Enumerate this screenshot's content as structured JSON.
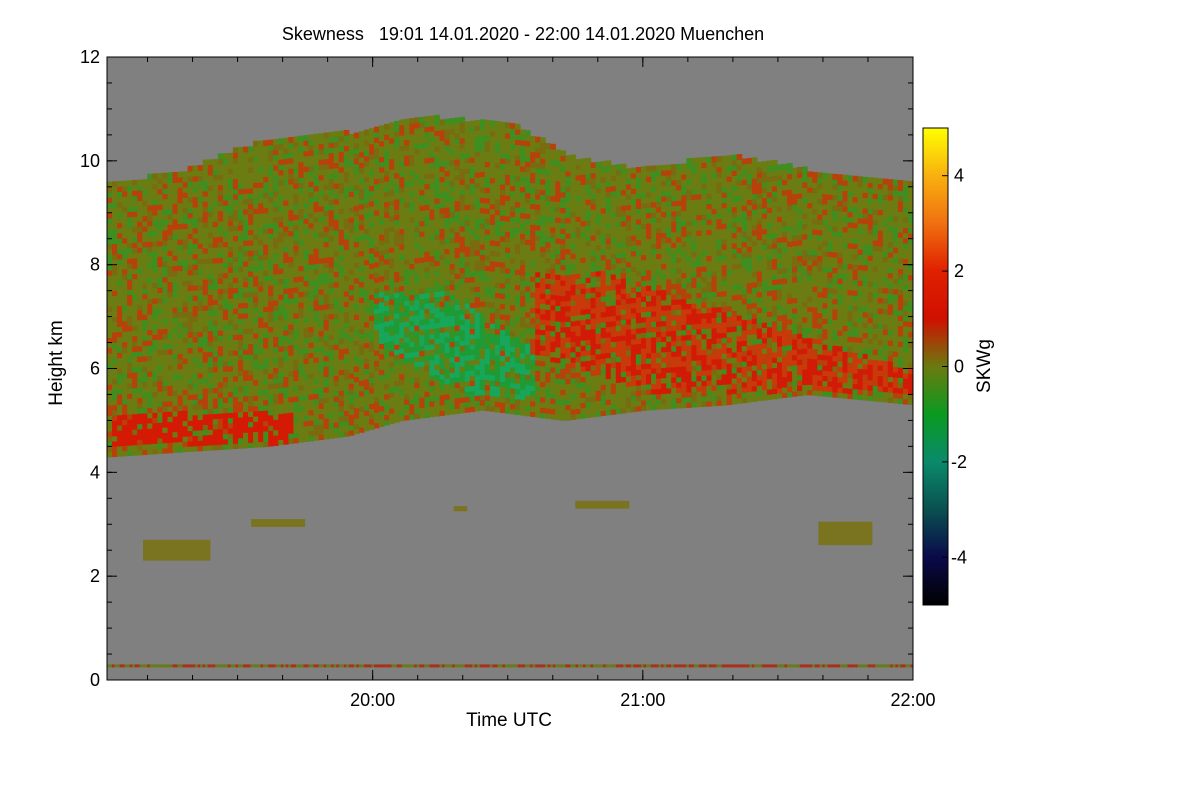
{
  "chart_data": {
    "type": "heatmap",
    "title": "Skewness   19:01 14.01.2020 - 22:00 14.01.2020 Muenchen",
    "xlabel": "Time UTC",
    "ylabel": "Height km",
    "colorbar_label": "SKWg",
    "x_start": "19:01",
    "x_end": "22:00",
    "xlim_hours": [
      19.0167,
      22.0
    ],
    "ylim": [
      0,
      12
    ],
    "x_ticks": [
      {
        "value": 20,
        "label": "20:00"
      },
      {
        "value": 21,
        "label": "21:00"
      },
      {
        "value": 22,
        "label": "22:00"
      }
    ],
    "x_minor_step_min": 10,
    "y_ticks": [
      {
        "value": 0,
        "label": "0"
      },
      {
        "value": 2,
        "label": "2"
      },
      {
        "value": 4,
        "label": "4"
      },
      {
        "value": 6,
        "label": "6"
      },
      {
        "value": 8,
        "label": "8"
      },
      {
        "value": 10,
        "label": "10"
      },
      {
        "value": 12,
        "label": "12"
      }
    ],
    "y_minor_step": 0.5,
    "colorbar": {
      "range": [
        -5,
        5
      ],
      "ticks": [
        {
          "value": 4,
          "label": "4"
        },
        {
          "value": 2,
          "label": "2"
        },
        {
          "value": 0,
          "label": "0"
        },
        {
          "value": -2,
          "label": "-2"
        },
        {
          "value": -4,
          "label": "-4"
        }
      ],
      "stops": [
        {
          "value": -5,
          "color": "#000000"
        },
        {
          "value": -4,
          "color": "#0a0a4a"
        },
        {
          "value": -3,
          "color": "#0a5050"
        },
        {
          "value": -2,
          "color": "#0a8a6a"
        },
        {
          "value": -1,
          "color": "#0a9a20"
        },
        {
          "value": 0,
          "color": "#6a7a10"
        },
        {
          "value": 1,
          "color": "#d01000"
        },
        {
          "value": 2,
          "color": "#e02000"
        },
        {
          "value": 3,
          "color": "#f07010"
        },
        {
          "value": 4,
          "color": "#f8b010"
        },
        {
          "value": 5,
          "color": "#ffff00"
        }
      ]
    },
    "no_data_color": "#808080",
    "data_regions": {
      "cirrus_top_km": [
        {
          "t": 19.02,
          "h": 9.5
        },
        {
          "t": 19.3,
          "h": 9.8
        },
        {
          "t": 19.6,
          "h": 10.4
        },
        {
          "t": 19.9,
          "h": 10.5
        },
        {
          "t": 20.2,
          "h": 10.8
        },
        {
          "t": 20.5,
          "h": 10.7
        },
        {
          "t": 20.75,
          "h": 10.0
        },
        {
          "t": 21.0,
          "h": 9.8
        },
        {
          "t": 21.3,
          "h": 10.1
        },
        {
          "t": 21.6,
          "h": 9.8
        },
        {
          "t": 22.0,
          "h": 9.5
        }
      ],
      "cirrus_base_km": [
        {
          "t": 19.02,
          "h": 4.3
        },
        {
          "t": 19.3,
          "h": 4.4
        },
        {
          "t": 19.6,
          "h": 4.5
        },
        {
          "t": 19.9,
          "h": 4.7
        },
        {
          "t": 20.1,
          "h": 5.0
        },
        {
          "t": 20.4,
          "h": 5.2
        },
        {
          "t": 20.7,
          "h": 5.0
        },
        {
          "t": 21.0,
          "h": 5.2
        },
        {
          "t": 21.3,
          "h": 5.3
        },
        {
          "t": 21.6,
          "h": 5.5
        },
        {
          "t": 22.0,
          "h": 5.3
        }
      ],
      "red_band_near_base": [
        19.02,
        19.7,
        4.5,
        5.1
      ],
      "green_streak": [
        20.0,
        20.6,
        5.4,
        7.4
      ],
      "red_streak": [
        20.6,
        22.0,
        5.5,
        7.8
      ],
      "low_cloud_patches": [
        {
          "t0": 19.15,
          "t1": 19.4,
          "h0": 2.3,
          "h1": 2.7
        },
        {
          "t0": 19.55,
          "t1": 19.75,
          "h0": 2.95,
          "h1": 3.1
        },
        {
          "t0": 20.3,
          "t1": 20.35,
          "h0": 3.25,
          "h1": 3.35
        },
        {
          "t0": 20.75,
          "t1": 20.95,
          "h0": 3.3,
          "h1": 3.45
        },
        {
          "t0": 21.65,
          "t1": 21.85,
          "h0": 2.6,
          "h1": 3.05
        }
      ],
      "surface_noise_km": [
        0.0,
        0.3
      ]
    }
  }
}
